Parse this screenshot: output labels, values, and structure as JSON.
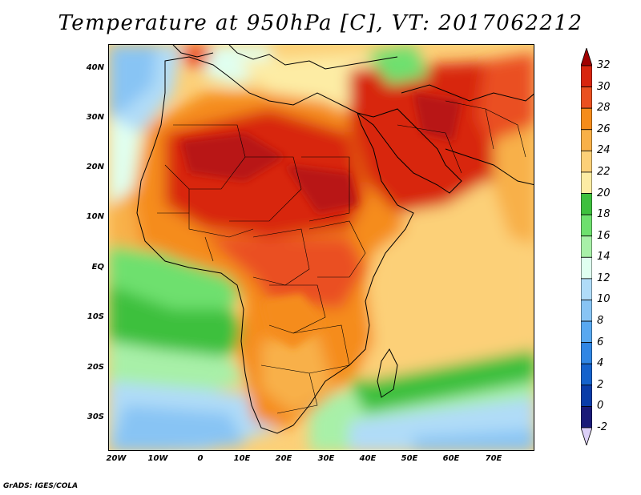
{
  "title": "Temperature at 950hPa [C], VT: 2017062212",
  "map": {
    "lat_labels": [
      "40N",
      "30N",
      "20N",
      "10N",
      "EQ",
      "10S",
      "20S",
      "30S"
    ],
    "lon_labels": [
      "20W",
      "10W",
      "0",
      "10E",
      "20E",
      "30E",
      "40E",
      "50E",
      "60E",
      "70E"
    ],
    "domain": {
      "lon_min": -21,
      "lon_max": 80,
      "lat_min": -37,
      "lat_max": 45
    },
    "field": "air temperature at 950 hPa",
    "units": "C"
  },
  "colorbar": {
    "labels": [
      "32",
      "30",
      "28",
      "26",
      "24",
      "22",
      "20",
      "18",
      "16",
      "14",
      "12",
      "10",
      "8",
      "6",
      "4",
      "2",
      "0",
      "-2"
    ],
    "colors": [
      "#a00000",
      "#d8250e",
      "#ea5020",
      "#f58c1a",
      "#f8b048",
      "#fcd078",
      "#fdeca4",
      "#3ec03e",
      "#6ee06e",
      "#a8f0a8",
      "#e0fff0",
      "#b0dcf8",
      "#88c4f4",
      "#58a8f0",
      "#3086e4",
      "#1462cc",
      "#0a3ca8",
      "#1a1a78",
      "#dcd0f8"
    ]
  },
  "credit": "GrADS: IGES/COLA"
}
